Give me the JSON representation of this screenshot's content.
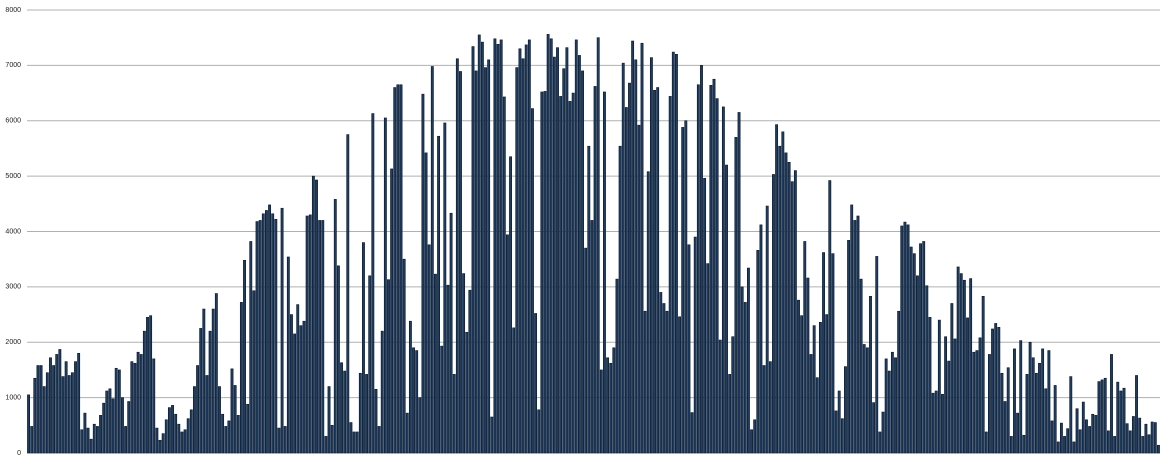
{
  "chart_data": {
    "type": "bar",
    "categories": [
      null,
      null,
      null,
      null,
      null,
      null,
      null,
      null,
      null,
      null,
      null,
      null,
      null,
      null,
      null,
      null,
      null,
      null,
      null,
      null,
      null,
      null,
      null,
      null,
      null,
      null,
      null,
      null,
      null,
      null,
      null,
      null,
      null,
      null,
      null,
      null,
      null,
      null,
      null,
      null,
      null,
      null,
      null,
      null,
      null,
      null,
      null,
      null,
      null,
      null,
      null,
      null,
      null,
      null,
      null,
      null,
      null,
      null,
      null,
      null,
      null,
      null,
      null,
      null,
      null,
      null,
      null,
      null,
      null,
      null,
      null,
      null,
      null,
      null,
      null,
      null,
      null,
      null,
      null,
      null,
      null,
      null,
      null,
      null,
      null,
      null,
      null,
      null,
      null,
      null,
      null,
      null,
      null,
      null,
      null,
      null,
      null,
      null,
      null,
      null,
      null,
      null,
      null,
      null,
      null,
      null,
      null,
      null,
      null,
      null,
      null,
      null,
      null,
      null,
      null,
      null,
      null,
      null,
      null,
      null,
      null,
      null,
      null,
      null,
      null,
      null,
      null,
      null,
      null,
      null,
      null,
      null,
      null,
      null,
      null,
      null,
      null,
      null,
      null,
      null,
      null,
      null,
      null,
      null,
      null,
      null,
      null,
      null,
      null,
      null,
      null,
      null,
      null,
      null,
      null,
      null,
      null,
      null,
      null,
      null,
      null,
      null,
      null,
      null,
      null,
      null,
      null,
      null,
      null,
      null,
      null,
      null,
      null,
      null,
      null,
      null,
      null,
      null,
      null,
      null,
      null,
      null,
      null,
      null,
      null,
      null,
      null,
      null,
      null,
      null,
      null,
      null,
      null,
      null,
      null,
      null,
      null,
      null,
      null,
      null,
      null,
      null,
      null,
      null,
      null,
      null,
      null,
      null,
      null,
      null,
      null,
      null,
      null,
      null,
      null,
      null,
      null,
      null,
      null,
      null,
      null,
      null,
      null,
      null,
      null,
      null,
      null,
      null,
      null,
      null,
      null,
      null,
      null,
      null,
      null,
      null,
      null,
      null,
      null,
      null,
      null,
      null,
      null,
      null,
      null,
      null,
      null,
      null,
      null,
      null,
      null,
      null,
      null,
      null,
      null,
      null,
      null,
      null,
      null,
      null,
      null,
      null,
      null,
      null,
      null,
      null,
      null,
      null,
      null,
      null,
      null,
      null,
      null,
      null,
      null,
      null,
      null,
      null,
      null,
      null,
      null,
      null,
      null,
      null,
      null,
      null,
      null,
      null,
      null,
      null,
      null,
      null,
      null,
      null,
      null,
      null,
      null,
      null,
      null,
      null,
      null,
      null,
      null,
      null,
      null,
      null,
      null,
      null,
      null,
      null,
      null,
      null,
      null,
      null,
      null,
      null,
      null,
      null,
      null,
      null,
      null,
      null,
      null,
      null,
      null,
      null,
      null,
      null,
      null,
      null,
      null,
      null,
      null,
      null,
      null,
      null,
      null,
      null,
      null,
      null,
      null,
      null,
      null,
      null,
      null,
      null,
      null,
      null,
      null,
      null,
      null,
      null,
      null,
      null,
      null,
      null,
      null,
      null,
      null,
      null,
      null,
      null
    ],
    "values": [
      1050,
      480,
      1350,
      1580,
      1580,
      1200,
      1450,
      1720,
      1580,
      1780,
      1870,
      1380,
      1650,
      1400,
      1450,
      1650,
      1800,
      420,
      720,
      450,
      250,
      520,
      480,
      680,
      900,
      1120,
      1160,
      980,
      1530,
      1500,
      1000,
      480,
      930,
      1650,
      1620,
      1820,
      1780,
      2200,
      2450,
      2480,
      1700,
      450,
      230,
      350,
      600,
      820,
      860,
      700,
      520,
      380,
      420,
      620,
      780,
      1200,
      1580,
      2250,
      2600,
      1400,
      2200,
      2600,
      2880,
      1200,
      700,
      480,
      580,
      1520,
      1220,
      680,
      2720,
      3480,
      880,
      3820,
      2930,
      4180,
      4200,
      4320,
      4380,
      4480,
      4320,
      4220,
      450,
      4420,
      480,
      3540,
      2500,
      2150,
      2680,
      2300,
      2380,
      4280,
      4300,
      5000,
      4930,
      4200,
      4200,
      300,
      1200,
      500,
      4580,
      3380,
      1630,
      1480,
      5750,
      550,
      380,
      380,
      1440,
      3800,
      1420,
      3200,
      6130,
      1150,
      480,
      2200,
      6050,
      3130,
      5130,
      6600,
      6650,
      6650,
      3500,
      720,
      2380,
      1900,
      1850,
      1000,
      6480,
      5420,
      3760,
      6980,
      3230,
      5720,
      1930,
      5960,
      3030,
      4330,
      1420,
      7120,
      6890,
      3240,
      2180,
      2940,
      7340,
      6900,
      7550,
      7420,
      6960,
      7100,
      650,
      7480,
      7380,
      7460,
      6430,
      3940,
      5350,
      2260,
      6960,
      7300,
      7120,
      7370,
      7460,
      6220,
      2520,
      780,
      6520,
      6530,
      7560,
      7480,
      7150,
      7320,
      6440,
      6940,
      7320,
      6350,
      6500,
      7460,
      7180,
      6900,
      3700,
      5540,
      4200,
      6620,
      7500,
      1500,
      6520,
      1720,
      1620,
      1900,
      3140,
      5540,
      7040,
      6240,
      6680,
      7440,
      7100,
      5920,
      7400,
      2560,
      5080,
      7140,
      6550,
      6600,
      2900,
      2700,
      2560,
      6440,
      7240,
      7200,
      2460,
      5880,
      6000,
      3760,
      730,
      3900,
      6650,
      7000,
      4960,
      3420,
      6640,
      6750,
      6400,
      2040,
      6250,
      5200,
      1420,
      2100,
      5700,
      6150,
      3000,
      2720,
      3340,
      420,
      600,
      3660,
      4120,
      1580,
      4460,
      1650,
      5030,
      5930,
      5540,
      5800,
      5420,
      5250,
      4900,
      5100,
      2760,
      2480,
      3820,
      3160,
      1780,
      2300,
      1360,
      2360,
      3620,
      2500,
      4920,
      3600,
      760,
      1120,
      620,
      1560,
      3840,
      4480,
      4200,
      4280,
      3140,
      1960,
      1900,
      2830,
      910,
      3550,
      380,
      740,
      1700,
      1480,
      1820,
      1720,
      2560,
      4100,
      4170,
      4120,
      3720,
      3600,
      3200,
      3780,
      3820,
      3020,
      2450,
      1080,
      1120,
      2400,
      1060,
      2100,
      1660,
      2700,
      2060,
      3360,
      3240,
      3120,
      2440,
      3150,
      1820,
      1850,
      2080,
      2830,
      380,
      1780,
      2240,
      2340,
      2270,
      1440,
      930,
      1540,
      300,
      1880,
      720,
      2030,
      320,
      1420,
      2000,
      1720,
      1440,
      1620,
      1880,
      1160,
      1850,
      580,
      1220,
      200,
      540,
      300,
      440,
      1380,
      200,
      800,
      420,
      920,
      600,
      480,
      700,
      680,
      1290,
      1320,
      1350,
      400,
      1780,
      300,
      1280,
      1120,
      1170,
      530,
      400,
      660,
      1400,
      630,
      300,
      520,
      330,
      560,
      550,
      140
    ],
    "color": "#1d3d63",
    "ylim": [
      0,
      8000
    ],
    "yticks": [
      0,
      1000,
      2000,
      3000,
      4000,
      5000,
      6000,
      7000,
      8000
    ],
    "grid": true
  }
}
